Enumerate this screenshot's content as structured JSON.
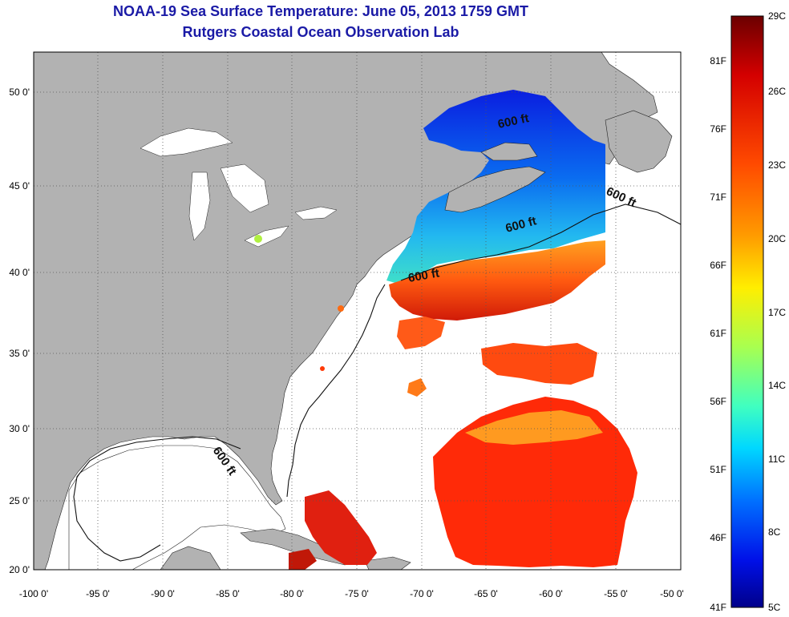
{
  "title": "NOAA-19 Sea Surface Temperature:  June 05, 2013 1759 GMT",
  "subtitle": "Rutgers Coastal Ocean Observation Lab",
  "colors": {
    "title": "#1a1aa6",
    "land": "#b2b2b2",
    "water_nodata": "#ffffff",
    "grid": "#555555"
  },
  "lon_ticks": [
    "-100 0'",
    "-95 0'",
    "-90 0'",
    "-85 0'",
    "-80 0'",
    "-75 0'",
    "-70 0'",
    "-65 0'",
    "-60 0'",
    "-55 0'",
    "-50 0'"
  ],
  "lat_ticks": [
    "20 0'",
    "25 0'",
    "30 0'",
    "35 0'",
    "40 0'",
    "45 0'",
    "50 0'"
  ],
  "contour_labels": [
    "600 ft",
    "600 ft",
    "600 ft",
    "600 ft",
    "600 ft"
  ],
  "colorbar": {
    "celsius_labels": [
      "29C",
      "26C",
      "23C",
      "20C",
      "17C",
      "14C",
      "11C",
      "8C",
      "5C"
    ],
    "fahrenheit_labels": [
      "81F",
      "76F",
      "71F",
      "66F",
      "61F",
      "56F",
      "51F",
      "46F",
      "41F"
    ],
    "color_stops": [
      "#6b0000",
      "#d40000",
      "#ff4a00",
      "#ff9a00",
      "#ffee00",
      "#a8ff50",
      "#40ffc0",
      "#00d8ff",
      "#0070ff",
      "#0010e8",
      "#00008a"
    ]
  }
}
